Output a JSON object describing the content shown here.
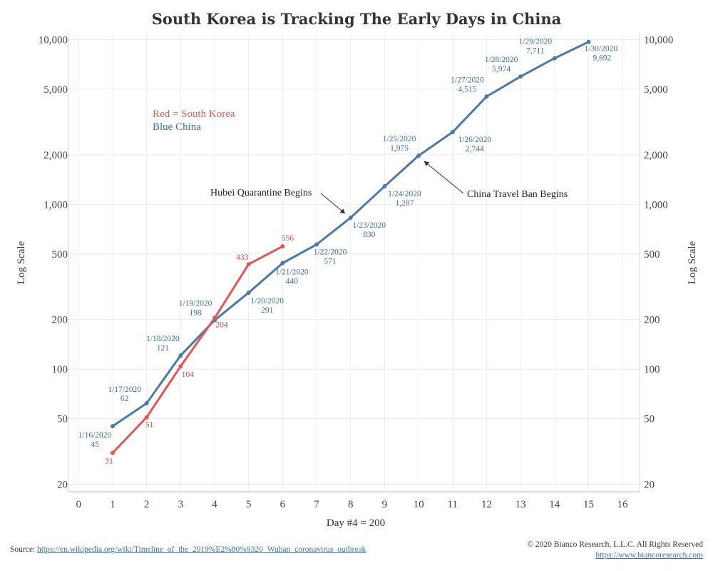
{
  "chart_data": {
    "type": "line",
    "title": "South Korea is Tracking The Early Days in China",
    "xlabel": "Day #4 = 200",
    "ylabel_left": "Log Scale",
    "ylabel_right": "Log Scale",
    "yscale": "log",
    "ylim": [
      18,
      11000
    ],
    "xlim": [
      -0.3,
      16.5
    ],
    "x_ticks": [
      "0",
      "1",
      "2",
      "3",
      "4",
      "5",
      "6",
      "7",
      "8",
      "9",
      "10",
      "11",
      "12",
      "13",
      "14",
      "15",
      "16"
    ],
    "y_ticks": [
      {
        "value": 20,
        "label": "20"
      },
      {
        "value": 50,
        "label": "50"
      },
      {
        "value": 100,
        "label": "100"
      },
      {
        "value": 200,
        "label": "200"
      },
      {
        "value": 500,
        "label": "500"
      },
      {
        "value": 1000,
        "label": "1,000"
      },
      {
        "value": 2000,
        "label": "2,000"
      },
      {
        "value": 5000,
        "label": "5,000"
      },
      {
        "value": 10000,
        "label": "10,000"
      }
    ],
    "series": [
      {
        "name": "China",
        "color": "#4e79a7",
        "x": [
          1,
          2,
          3,
          4,
          5,
          6,
          7,
          8,
          9,
          10,
          11,
          12,
          13,
          14,
          15
        ],
        "values": [
          45,
          62,
          121,
          198,
          291,
          440,
          571,
          830,
          1287,
          1975,
          2744,
          4515,
          5974,
          7711,
          9692
        ],
        "labels": [
          {
            "date": "1/16/2020",
            "value": "45"
          },
          {
            "date": "1/17/2020",
            "value": "62"
          },
          {
            "date": "1/18/2020",
            "value": "121"
          },
          {
            "date": "1/19/2020",
            "value": "198"
          },
          {
            "date": "1/20/2020",
            "value": "291"
          },
          {
            "date": "1/21/2020",
            "value": "440"
          },
          {
            "date": "1/22/2020",
            "value": "571"
          },
          {
            "date": "1/23/2020",
            "value": "830"
          },
          {
            "date": "1/24/2020",
            "value": "1,287"
          },
          {
            "date": "1/25/2020",
            "value": "1,975"
          },
          {
            "date": "1/26/2020",
            "value": "2,744"
          },
          {
            "date": "1/27/2020",
            "value": "4,515"
          },
          {
            "date": "1/28/2020",
            "value": "5,974"
          },
          {
            "date": "1/29/2020",
            "value": "7,711"
          },
          {
            "date": "1/30/2020",
            "value": "9,692"
          }
        ]
      },
      {
        "name": "South Korea",
        "color": "#e15759",
        "x": [
          1,
          2,
          3,
          4,
          5,
          6
        ],
        "values": [
          31,
          51,
          104,
          204,
          433,
          556
        ],
        "labels": [
          "31",
          "51",
          "104",
          "204",
          "433",
          "556"
        ]
      }
    ],
    "legend": {
      "position": "upper-left",
      "red_text": "Red = South Korea",
      "blue_text": "Blue China",
      "red_color": "#e15759",
      "blue_color": "#3b6ea5"
    },
    "annotations": [
      {
        "text": "Hubei Quarantine Begins",
        "target_x": 8,
        "target_value": 830
      },
      {
        "text": "China Travel Ban Begins",
        "target_x": 10,
        "target_value": 1975
      }
    ]
  },
  "footer": {
    "source_label": "Source: ",
    "source_url": "https://en.wikipedia.org/wiki/Timeline_of_the_2019%E2%80%9320_Wuhan_coronavirus_outbreak",
    "copyright": "© 2020 Bianco Research, L.L.C. All Rights Reserved",
    "site_url": "https://www.biancoresearch.com"
  }
}
